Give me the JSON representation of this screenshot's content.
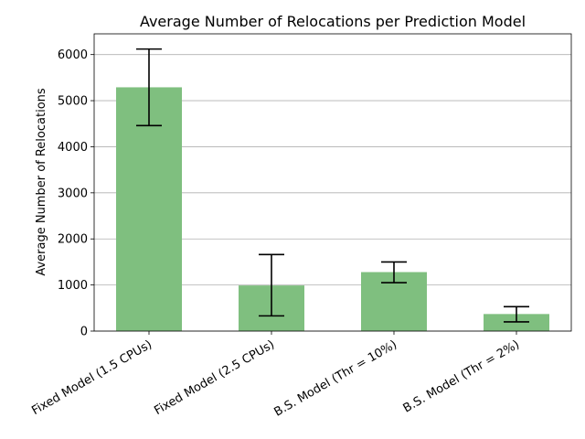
{
  "chart_data": {
    "type": "bar",
    "title": "Average Number of Relocations per Prediction Model",
    "xlabel": "",
    "ylabel": "Average Number of Relocations",
    "categories": [
      "Fixed Model (1.5 CPUs)",
      "Fixed Model (2.5 CPUs)",
      "B.S. Model (Thr = 10%)",
      "B.S. Model (Thr = 2%)"
    ],
    "values": [
      5290,
      990,
      1280,
      370
    ],
    "error_bars": [
      {
        "low": 4460,
        "high": 6120
      },
      {
        "low": 330,
        "high": 1660
      },
      {
        "low": 1050,
        "high": 1500
      },
      {
        "low": 200,
        "high": 530
      }
    ],
    "yticks": [
      0,
      1000,
      2000,
      3000,
      4000,
      5000,
      6000
    ],
    "ylim": [
      0,
      6450
    ],
    "grid": "y-axis",
    "bar_color": "#7fbf7f",
    "error_color": "#000000",
    "grid_color": "#b0b0b0"
  }
}
